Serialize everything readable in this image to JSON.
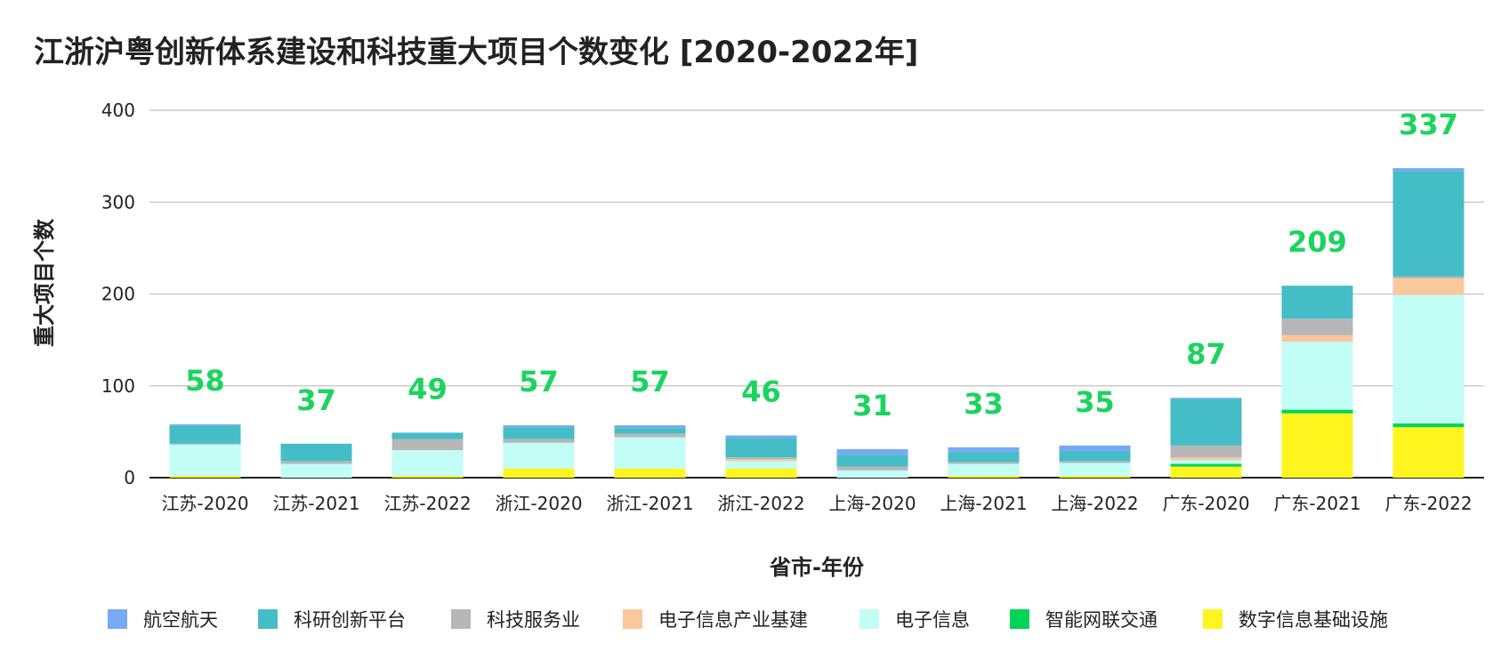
{
  "chart_data": {
    "type": "bar",
    "stacked": true,
    "title": "江浙沪粤创新体系建设和科技重大项目个数变化 [2020-2022年]",
    "xlabel": "省市-年份",
    "ylabel": "重大项目个数",
    "ylim": [
      0,
      400
    ],
    "yticks": [
      0,
      100,
      200,
      300,
      400
    ],
    "grid": true,
    "legend_position": "bottom",
    "categories": [
      "江苏-2020",
      "江苏-2021",
      "江苏-2022",
      "浙江-2020",
      "浙江-2021",
      "浙江-2022",
      "上海-2020",
      "上海-2021",
      "上海-2022",
      "广东-2020",
      "广东-2021",
      "广东-2022"
    ],
    "totals": [
      58,
      37,
      49,
      57,
      57,
      46,
      31,
      33,
      35,
      87,
      209,
      337
    ],
    "total_label_color": "#1ad45e",
    "series": [
      {
        "name": "数字信息基础设施",
        "color": "#fff51e",
        "values": [
          2,
          0,
          2,
          10,
          10,
          10,
          0,
          2,
          2,
          12,
          70,
          55
        ]
      },
      {
        "name": "智能网联交通",
        "color": "#00d455",
        "values": [
          0,
          0,
          0,
          0,
          0,
          0,
          0,
          0,
          0,
          3,
          4,
          4
        ]
      },
      {
        "name": "电子信息",
        "color": "#c2fdf6",
        "values": [
          34,
          15,
          28,
          28,
          34,
          8,
          8,
          13,
          14,
          4,
          74,
          140
        ]
      },
      {
        "name": "电子信息产业基建",
        "color": "#f9c99b",
        "values": [
          0,
          0,
          0,
          0,
          0,
          2,
          0,
          0,
          0,
          3,
          7,
          18
        ]
      },
      {
        "name": "科技服务业",
        "color": "#b7b7b7",
        "values": [
          1,
          3,
          12,
          4,
          4,
          2,
          4,
          2,
          2,
          13,
          18,
          2
        ]
      },
      {
        "name": "科研创新平台",
        "color": "#45bdc6",
        "values": [
          20,
          19,
          7,
          13,
          6,
          21,
          13,
          11,
          11,
          51,
          36,
          115
        ]
      },
      {
        "name": "航空航天",
        "color": "#78a9f4",
        "values": [
          1,
          0,
          0,
          2,
          3,
          3,
          6,
          5,
          6,
          1,
          0,
          3
        ]
      }
    ],
    "legend_order": [
      "航空航天",
      "科研创新平台",
      "科技服务业",
      "电子信息产业基建",
      "电子信息",
      "智能网联交通",
      "数字信息基础设施"
    ]
  }
}
